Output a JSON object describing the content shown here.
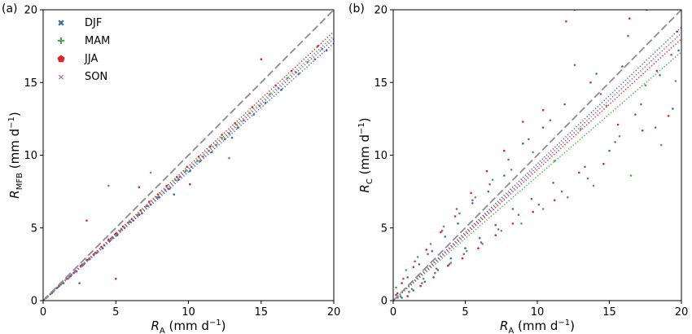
{
  "colors": {
    "DJF": "#3c6ea4",
    "MAM": "#4aa64d",
    "JJA": "#de2526",
    "SON": "#9a50b2",
    "one_to_one": "#8c8c8c"
  },
  "chart_data": [
    {
      "type": "scatter",
      "panel_label": "(a)",
      "xlabel": {
        "main": "R",
        "sub": "A",
        "units": " (mm d",
        "sup": "−1",
        "close": ")"
      },
      "ylabel": {
        "main": "R",
        "sub": "MFB",
        "units": " (mm d",
        "sup": "−1",
        "close": ")"
      },
      "xlim": [
        0,
        20
      ],
      "ylim": [
        0,
        20
      ],
      "xticks": [
        0,
        5,
        10,
        15,
        20
      ],
      "yticks": [
        0,
        5,
        10,
        15,
        20
      ],
      "grid": false,
      "legend": {
        "position": "top-left",
        "entries": [
          "DJF",
          "MAM",
          "JJA",
          "SON"
        ],
        "markers": [
          "✖",
          "✚",
          "⬟",
          "×"
        ]
      },
      "one_to_one_line": true,
      "fit_lines": [
        {
          "season": "DJF",
          "slope": 0.885
        },
        {
          "season": "MAM",
          "slope": 0.91
        },
        {
          "season": "JJA",
          "slope": 0.925
        },
        {
          "season": "SON",
          "slope": 0.9
        }
      ],
      "series": [
        {
          "name": "DJF",
          "points": [
            [
              0.3,
              0.28
            ],
            [
              0.6,
              0.52
            ],
            [
              1.0,
              0.9
            ],
            [
              1.4,
              1.2
            ],
            [
              1.9,
              1.7
            ],
            [
              2.3,
              2.0
            ],
            [
              2.8,
              2.5
            ],
            [
              3.2,
              2.85
            ],
            [
              3.7,
              3.3
            ],
            [
              4.1,
              3.6
            ],
            [
              4.6,
              4.1
            ],
            [
              5.1,
              4.5
            ],
            [
              5.6,
              5.0
            ],
            [
              6.2,
              5.5
            ],
            [
              6.8,
              6.0
            ],
            [
              7.4,
              6.6
            ],
            [
              8.0,
              7.1
            ],
            [
              8.7,
              7.7
            ],
            [
              9.3,
              8.3
            ],
            [
              10.1,
              8.9
            ],
            [
              10.8,
              9.6
            ],
            [
              11.6,
              10.2
            ],
            [
              12.5,
              11.1
            ],
            [
              13.4,
              11.9
            ],
            [
              14.5,
              12.8
            ],
            [
              15.3,
              13.6
            ],
            [
              16.4,
              14.5
            ],
            [
              17.6,
              15.6
            ],
            [
              18.7,
              16.6
            ],
            [
              19.5,
              17.2
            ],
            [
              2.5,
              1.2
            ],
            [
              9.0,
              7.3
            ],
            [
              13.0,
              11.2
            ]
          ]
        },
        {
          "name": "MAM",
          "points": [
            [
              0.2,
              0.2
            ],
            [
              0.5,
              0.45
            ],
            [
              0.9,
              0.85
            ],
            [
              1.3,
              1.2
            ],
            [
              1.8,
              1.6
            ],
            [
              2.2,
              2.0
            ],
            [
              2.7,
              2.5
            ],
            [
              3.1,
              2.8
            ],
            [
              3.6,
              3.3
            ],
            [
              4.2,
              3.8
            ],
            [
              4.7,
              4.3
            ],
            [
              5.3,
              4.8
            ],
            [
              5.9,
              5.4
            ],
            [
              6.5,
              5.9
            ],
            [
              7.1,
              6.5
            ],
            [
              7.8,
              7.1
            ],
            [
              8.4,
              7.6
            ],
            [
              9.1,
              8.3
            ],
            [
              9.8,
              8.9
            ],
            [
              10.6,
              9.6
            ],
            [
              11.4,
              10.3
            ],
            [
              12.3,
              11.2
            ],
            [
              13.3,
              12.1
            ],
            [
              14.2,
              12.9
            ],
            [
              15.6,
              14.2
            ],
            [
              16.8,
              15.3
            ],
            [
              18.2,
              16.4
            ],
            [
              4.5,
              7.9
            ],
            [
              7.4,
              8.8
            ],
            [
              12.8,
              9.8
            ]
          ]
        },
        {
          "name": "JJA",
          "points": [
            [
              0.2,
              0.19
            ],
            [
              0.6,
              0.56
            ],
            [
              1.1,
              1.0
            ],
            [
              1.6,
              1.5
            ],
            [
              2.1,
              1.9
            ],
            [
              2.6,
              2.4
            ],
            [
              3.0,
              2.8
            ],
            [
              3.5,
              3.2
            ],
            [
              4.0,
              3.7
            ],
            [
              4.5,
              4.2
            ],
            [
              5.0,
              4.6
            ],
            [
              5.5,
              5.1
            ],
            [
              6.1,
              5.6
            ],
            [
              6.7,
              6.2
            ],
            [
              7.3,
              6.8
            ],
            [
              7.9,
              7.3
            ],
            [
              8.5,
              7.9
            ],
            [
              9.2,
              8.5
            ],
            [
              9.9,
              9.2
            ],
            [
              10.7,
              9.9
            ],
            [
              11.5,
              10.6
            ],
            [
              12.3,
              11.4
            ],
            [
              13.2,
              12.2
            ],
            [
              14.4,
              13.3
            ],
            [
              15.0,
              16.6
            ],
            [
              16.0,
              14.8
            ],
            [
              17.1,
              15.8
            ],
            [
              18.9,
              17.5
            ],
            [
              6.6,
              7.8
            ],
            [
              10.1,
              8.0
            ],
            [
              3.0,
              5.5
            ],
            [
              5.0,
              1.5
            ]
          ]
        },
        {
          "name": "SON",
          "points": [
            [
              0.3,
              0.27
            ],
            [
              0.7,
              0.63
            ],
            [
              1.2,
              1.1
            ],
            [
              1.7,
              1.5
            ],
            [
              2.2,
              2.0
            ],
            [
              2.7,
              2.4
            ],
            [
              3.2,
              2.9
            ],
            [
              3.7,
              3.3
            ],
            [
              4.2,
              3.8
            ],
            [
              4.8,
              4.3
            ],
            [
              5.4,
              4.9
            ],
            [
              6.0,
              5.4
            ],
            [
              6.6,
              5.9
            ],
            [
              7.2,
              6.5
            ],
            [
              7.9,
              7.1
            ],
            [
              8.6,
              7.7
            ],
            [
              9.4,
              8.5
            ],
            [
              10.2,
              9.2
            ],
            [
              11.0,
              9.9
            ],
            [
              11.9,
              10.7
            ],
            [
              12.8,
              11.5
            ],
            [
              13.8,
              12.4
            ],
            [
              14.9,
              13.4
            ],
            [
              16.2,
              14.6
            ],
            [
              17.4,
              15.7
            ],
            [
              19.2,
              17.3
            ]
          ]
        }
      ]
    },
    {
      "type": "scatter",
      "panel_label": "(b)",
      "xlabel": {
        "main": "R",
        "sub": "A",
        "units": " (mm d",
        "sup": "−1",
        "close": ")"
      },
      "ylabel": {
        "main": "R",
        "sub": "C",
        "units": " (mm d",
        "sup": "−1",
        "close": ")"
      },
      "xlim": [
        0,
        20
      ],
      "ylim": [
        0,
        20
      ],
      "xticks": [
        0,
        5,
        10,
        15,
        20
      ],
      "yticks": [
        0,
        5,
        10,
        15,
        20
      ],
      "grid": false,
      "one_to_one_line": true,
      "fit_lines": [
        {
          "season": "DJF",
          "slope": 0.94
        },
        {
          "season": "MAM",
          "slope": 0.855
        },
        {
          "season": "JJA",
          "slope": 0.9
        },
        {
          "season": "SON",
          "slope": 0.92
        }
      ],
      "series": [
        {
          "name": "DJF",
          "points": [
            [
              0.3,
              0.5
            ],
            [
              0.6,
              0.2
            ],
            [
              1.0,
              1.6
            ],
            [
              1.4,
              0.7
            ],
            [
              1.8,
              2.5
            ],
            [
              2.2,
              1.3
            ],
            [
              2.7,
              3.4
            ],
            [
              3.1,
              2.1
            ],
            [
              3.6,
              4.4
            ],
            [
              4.0,
              2.9
            ],
            [
              4.5,
              5.3
            ],
            [
              5.0,
              3.6
            ],
            [
              5.5,
              6.7
            ],
            [
              6.0,
              4.3
            ],
            [
              6.6,
              7.5
            ],
            [
              7.1,
              5.2
            ],
            [
              7.7,
              8.6
            ],
            [
              8.3,
              6.3
            ],
            [
              9.0,
              10.8
            ],
            [
              9.6,
              7.0
            ],
            [
              10.4,
              11.9
            ],
            [
              11.1,
              8.1
            ],
            [
              11.9,
              13.5
            ],
            [
              12.6,
              20.0
            ],
            [
              13.3,
              9.2
            ],
            [
              14.1,
              15.6
            ],
            [
              15.0,
              10.3
            ],
            [
              15.9,
              16.1
            ],
            [
              16.8,
              12.8
            ],
            [
              17.6,
              20.0
            ],
            [
              18.5,
              15.5
            ],
            [
              19.4,
              13.2
            ],
            [
              19.8,
              17.2
            ]
          ]
        },
        {
          "name": "MAM",
          "points": [
            [
              0.2,
              0.9
            ],
            [
              0.5,
              0.3
            ],
            [
              0.9,
              2.1
            ],
            [
              1.3,
              0.8
            ],
            [
              1.7,
              3.0
            ],
            [
              2.1,
              1.5
            ],
            [
              2.6,
              3.9
            ],
            [
              3.0,
              2.2
            ],
            [
              3.5,
              5.1
            ],
            [
              4.0,
              2.6
            ],
            [
              4.6,
              6.0
            ],
            [
              5.1,
              3.4
            ],
            [
              5.7,
              7.1
            ],
            [
              6.2,
              3.9
            ],
            [
              6.9,
              8.3
            ],
            [
              7.5,
              4.8
            ],
            [
              8.2,
              9.0
            ],
            [
              8.9,
              5.3
            ],
            [
              9.7,
              10.2
            ],
            [
              10.4,
              6.3
            ],
            [
              11.2,
              9.6
            ],
            [
              12.1,
              7.1
            ],
            [
              13.0,
              11.8
            ],
            [
              13.9,
              7.9
            ],
            [
              14.8,
              13.4
            ],
            [
              15.7,
              11.3
            ],
            [
              16.5,
              8.6
            ],
            [
              17.5,
              14.8
            ],
            [
              18.6,
              10.7
            ],
            [
              19.6,
              15.1
            ]
          ]
        },
        {
          "name": "JJA",
          "points": [
            [
              0.2,
              0.4
            ],
            [
              0.6,
              1.2
            ],
            [
              1.0,
              0.3
            ],
            [
              1.4,
              2.3
            ],
            [
              1.9,
              1.0
            ],
            [
              2.3,
              3.5
            ],
            [
              2.8,
              1.6
            ],
            [
              3.3,
              4.7
            ],
            [
              3.8,
              2.4
            ],
            [
              4.3,
              5.8
            ],
            [
              4.8,
              2.9
            ],
            [
              5.4,
              7.4
            ],
            [
              5.9,
              3.6
            ],
            [
              6.5,
              8.9
            ],
            [
              7.1,
              4.5
            ],
            [
              7.7,
              10.3
            ],
            [
              8.3,
              5.3
            ],
            [
              9.0,
              12.3
            ],
            [
              9.7,
              6.1
            ],
            [
              10.4,
              13.1
            ],
            [
              11.2,
              6.9
            ],
            [
              12.0,
              19.2
            ],
            [
              12.9,
              8.8
            ],
            [
              13.7,
              15.0
            ],
            [
              14.6,
              9.4
            ],
            [
              15.6,
              12.1
            ],
            [
              16.4,
              19.4
            ],
            [
              17.3,
              11.7
            ],
            [
              18.3,
              15.8
            ],
            [
              19.1,
              12.7
            ],
            [
              19.7,
              18.5
            ]
          ]
        },
        {
          "name": "SON",
          "points": [
            [
              0.3,
              0.2
            ],
            [
              0.7,
              1.5
            ],
            [
              1.1,
              0.6
            ],
            [
              1.5,
              2.7
            ],
            [
              2.0,
              1.2
            ],
            [
              2.4,
              3.2
            ],
            [
              2.9,
              1.9
            ],
            [
              3.4,
              4.8
            ],
            [
              3.9,
              2.5
            ],
            [
              4.4,
              6.3
            ],
            [
              4.9,
              3.2
            ],
            [
              5.5,
              6.9
            ],
            [
              6.1,
              4.0
            ],
            [
              6.7,
              8.0
            ],
            [
              7.3,
              4.9
            ],
            [
              8.0,
              9.7
            ],
            [
              8.7,
              5.9
            ],
            [
              9.4,
              11.1
            ],
            [
              10.1,
              6.6
            ],
            [
              10.9,
              12.4
            ],
            [
              11.7,
              7.5
            ],
            [
              12.6,
              16.2
            ],
            [
              13.5,
              8.4
            ],
            [
              14.4,
              14.2
            ],
            [
              15.4,
              10.9
            ],
            [
              16.3,
              18.2
            ],
            [
              17.2,
              13.5
            ],
            [
              18.2,
              11.9
            ],
            [
              19.3,
              16.9
            ]
          ]
        }
      ]
    }
  ]
}
